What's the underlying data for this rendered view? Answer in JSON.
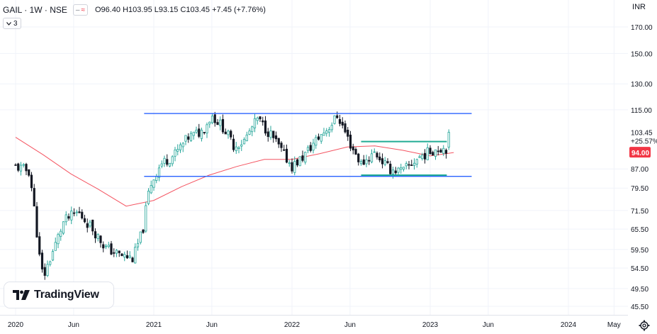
{
  "header": {
    "symbol": "GAIL · 1W · NSE",
    "compare_pill": "≈",
    "ohlc_text": "O96.40 H103.95 L93.15 C103.45 +7.45 (+7.76%)",
    "indicator_toggle": "3",
    "currency": "INR"
  },
  "price_labels": {
    "last_close": "103.45",
    "change_pct": "+25.57%",
    "ma_value": "94.00"
  },
  "branding": {
    "logo_text": "TradingView"
  },
  "icons": {
    "settings": "gear-icon",
    "logo": "tradingview-logo-icon",
    "toggle": "chevron-down-icon"
  },
  "colors": {
    "up": "#26a69a",
    "down": "#131722",
    "ma": "#f23645",
    "channel": "#2962ff",
    "range": "#22ab94",
    "ma_badge": "#f23645"
  },
  "chart_data": {
    "type": "candlestick",
    "title": "",
    "x_ticks": [
      "2020",
      "Jun",
      "2021",
      "Jun",
      "2022",
      "Jun",
      "2023",
      "Jun",
      "2024",
      "May"
    ],
    "y_ticks": [
      "170.00",
      "150.00",
      "130.00",
      "115.00",
      "87.00",
      "79.50",
      "71.50",
      "65.50",
      "59.50",
      "54.50",
      "49.50",
      "45.50"
    ],
    "y_scale": "log",
    "ylim": [
      44.5,
      182
    ],
    "timeframe": "weekly",
    "last_close": 103.45,
    "change": 7.45,
    "change_pct": 7.76,
    "overlays": {
      "moving_average": {
        "color": "#f23645",
        "current_value": 94.0,
        "points": [
          [
            2020.0,
            101
          ],
          [
            2020.2,
            93
          ],
          [
            2020.4,
            85
          ],
          [
            2020.6,
            79
          ],
          [
            2020.8,
            73
          ],
          [
            2021.0,
            75
          ],
          [
            2021.2,
            80
          ],
          [
            2021.4,
            84.5
          ],
          [
            2021.6,
            88
          ],
          [
            2021.8,
            91
          ],
          [
            2022.0,
            91
          ],
          [
            2022.2,
            93.5
          ],
          [
            2022.4,
            96.5
          ],
          [
            2022.6,
            97
          ],
          [
            2022.8,
            95
          ],
          [
            2023.0,
            92.5
          ],
          [
            2023.17,
            94
          ]
        ]
      },
      "channel_top": {
        "value": 113,
        "from": 2020.93,
        "to": 2023.3
      },
      "channel_bottom": {
        "value": 84,
        "from": 2020.93,
        "to": 2023.3
      },
      "range_top": {
        "value": 99,
        "from": 2022.5,
        "to": 2023.12
      },
      "range_bottom": {
        "value": 84.5,
        "from": 2022.5,
        "to": 2023.12
      }
    },
    "anchors": [
      [
        2020.0,
        88
      ],
      [
        2020.1,
        86
      ],
      [
        2020.17,
        58
      ],
      [
        2020.2,
        52
      ],
      [
        2020.28,
        60
      ],
      [
        2020.35,
        68
      ],
      [
        2020.45,
        71
      ],
      [
        2020.55,
        66
      ],
      [
        2020.65,
        60
      ],
      [
        2020.75,
        58
      ],
      [
        2020.85,
        57
      ],
      [
        2020.92,
        65
      ],
      [
        2020.97,
        80
      ],
      [
        2021.05,
        89
      ],
      [
        2021.15,
        93
      ],
      [
        2021.25,
        101
      ],
      [
        2021.35,
        104
      ],
      [
        2021.42,
        112
      ],
      [
        2021.5,
        106
      ],
      [
        2021.58,
        97
      ],
      [
        2021.65,
        99
      ],
      [
        2021.75,
        110
      ],
      [
        2021.85,
        102
      ],
      [
        2021.93,
        94
      ],
      [
        2022.0,
        88
      ],
      [
        2022.08,
        92
      ],
      [
        2022.18,
        100
      ],
      [
        2022.28,
        107
      ],
      [
        2022.33,
        112
      ],
      [
        2022.42,
        98
      ],
      [
        2022.5,
        89
      ],
      [
        2022.6,
        94
      ],
      [
        2022.7,
        87
      ],
      [
        2022.8,
        86
      ],
      [
        2022.92,
        92
      ],
      [
        2023.05,
        96
      ],
      [
        2023.12,
        96
      ],
      [
        2023.15,
        103.45
      ]
    ]
  }
}
